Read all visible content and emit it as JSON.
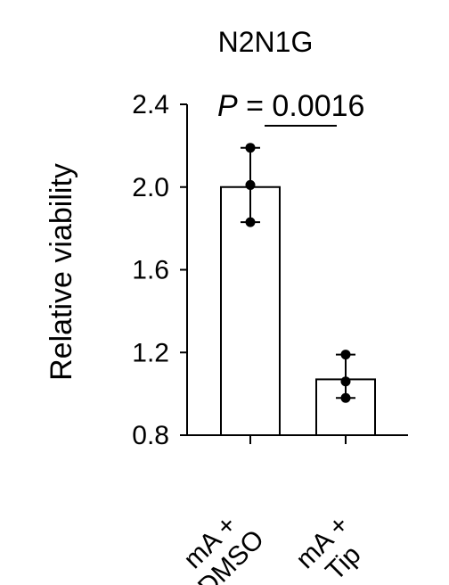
{
  "chart_data": {
    "type": "bar",
    "title": "N2N1G",
    "xlabel": "",
    "ylabel": "Relative viability",
    "ylim": [
      0.8,
      2.4
    ],
    "yticks": [
      0.8,
      1.2,
      1.6,
      2.0,
      2.4
    ],
    "ytick_labels": [
      "0.8",
      "1.2",
      "1.6",
      "2.0",
      "2.4"
    ],
    "categories": [
      {
        "line1": "mA +",
        "line2": "DMSO"
      },
      {
        "line1": "mA +",
        "line2": "Tip"
      }
    ],
    "values": [
      2.0,
      1.07
    ],
    "error_high": [
      2.19,
      1.19
    ],
    "error_low": [
      1.83,
      0.98
    ],
    "points": [
      [
        2.19,
        2.01,
        1.83
      ],
      [
        1.19,
        1.06,
        0.98
      ]
    ],
    "bar_fill": "#ffffff",
    "bar_stroke": "#000000",
    "annotation": {
      "p_symbol": "P",
      "p_rest": " = 0.0016"
    }
  }
}
